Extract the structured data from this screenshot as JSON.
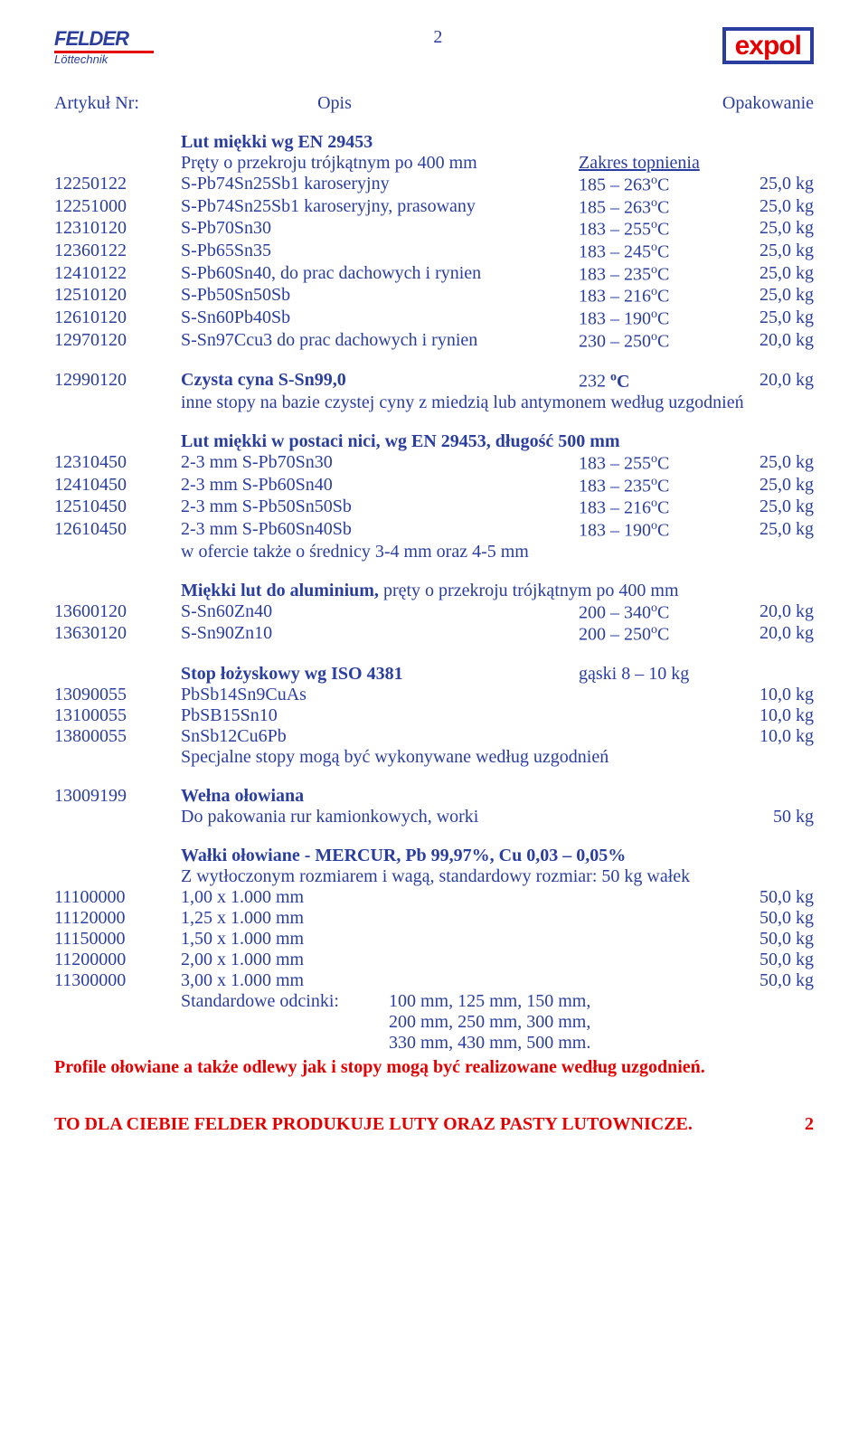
{
  "header": {
    "felder_name": "FELDER",
    "felder_sub": "Löttechnik",
    "page_num": "2",
    "expol": "expol"
  },
  "cols": {
    "c1": "Artykuł Nr:",
    "c2": "Opis",
    "c3": "Opakowanie"
  },
  "s1": {
    "title": "Lut miękki wg EN 29453",
    "sub_left": "Pręty o przekroju trójkątnym po 400 mm",
    "sub_right": "Zakres topnienia",
    "rows": [
      {
        "a": "12250122",
        "d": "S-Pb74Sn25Sb1 karoseryjny",
        "t": "185 – 263",
        "p": "25,0 kg"
      },
      {
        "a": "12251000",
        "d": "S-Pb74Sn25Sb1 karoseryjny, prasowany",
        "t": "185 – 263",
        "p": "25,0 kg"
      },
      {
        "a": "12310120",
        "d": "S-Pb70Sn30",
        "t": "183 – 255",
        "p": "25,0 kg"
      },
      {
        "a": "12360122",
        "d": "S-Pb65Sn35",
        "t": "183 – 245",
        "p": "25,0 kg"
      },
      {
        "a": "12410122",
        "d": "S-Pb60Sn40, do prac dachowych i rynien",
        "t": "183 – 235",
        "p": "25,0 kg"
      },
      {
        "a": "12510120",
        "d": "S-Pb50Sn50Sb",
        "t": "183 – 216",
        "p": "25,0 kg"
      },
      {
        "a": "12610120",
        "d": "S-Sn60Pb40Sb",
        "t": "183 – 190",
        "p": "25,0 kg"
      },
      {
        "a": "12970120",
        "d": "S-Sn97Ccu3 do prac dachowych i rynien",
        "t": "230 – 250",
        "p": "20,0 kg"
      }
    ]
  },
  "s2": {
    "row": {
      "a": "12990120",
      "d": "Czysta cyna S-Sn99,0",
      "t": "232 ",
      "p": "20,0 kg"
    },
    "note": "inne stopy na bazie czystej cyny z miedzią lub antymonem według uzgodnień"
  },
  "s3": {
    "title": "Lut miękki w postaci nici, wg EN 29453, długość 500 mm",
    "rows": [
      {
        "a": "12310450",
        "d": "2-3 mm S-Pb70Sn30",
        "t": "183 – 255",
        "p": "25,0 kg"
      },
      {
        "a": "12410450",
        "d": "2-3 mm S-Pb60Sn40",
        "t": "183 – 235",
        "p": "25,0 kg"
      },
      {
        "a": "12510450",
        "d": "2-3 mm S-Pb50Sn50Sb",
        "t": "183 – 216",
        "p": "25,0 kg"
      },
      {
        "a": "12610450",
        "d": "2-3 mm S-Pb60Sn40Sb",
        "t": "183 – 190",
        "p": "25,0 kg"
      }
    ],
    "note": "w ofercie także o średnicy 3-4 mm oraz 4-5 mm"
  },
  "s4": {
    "title": "Miękki lut do aluminium, ",
    "title2": "pręty o przekroju trójkątnym po 400 mm",
    "rows": [
      {
        "a": "13600120",
        "d": "S-Sn60Zn40",
        "t": "200 – 340",
        "p": "20,0 kg"
      },
      {
        "a": "13630120",
        "d": "S-Sn90Zn10",
        "t": "200 – 250",
        "p": "20,0 kg"
      }
    ]
  },
  "s5": {
    "title": "Stop łożyskowy wg ISO 4381",
    "title_right": "gąski 8 – 10 kg",
    "rows": [
      {
        "a": "13090055",
        "d": "PbSb14Sn9CuAs",
        "p": "10,0 kg"
      },
      {
        "a": "13100055",
        "d": "PbSB15Sn10",
        "p": "10,0 kg"
      },
      {
        "a": "13800055",
        "d": "SnSb12Cu6Pb",
        "p": "10,0 kg"
      }
    ],
    "note": "Specjalne stopy mogą być wykonywane według uzgodnień"
  },
  "s6": {
    "a": "13009199",
    "title": "Wełna ołowiana",
    "desc": "Do pakowania rur kamionkowych, worki",
    "pkg": "50 kg"
  },
  "s7": {
    "title": "Wałki ołowiane - MERCUR, Pb 99,97%, Cu 0,03 – 0,05%",
    "sub": "Z wytłoczonym rozmiarem i wagą, standardowy rozmiar: 50 kg wałek",
    "rows": [
      {
        "a": "11100000",
        "d": "1,00 x 1.000 mm",
        "p": "50,0 kg"
      },
      {
        "a": "11120000",
        "d": "1,25 x 1.000 mm",
        "p": "50,0 kg"
      },
      {
        "a": "11150000",
        "d": "1,50 x 1.000 mm",
        "p": "50,0 kg"
      },
      {
        "a": "11200000",
        "d": "2,00 x 1.000 mm",
        "p": "50,0 kg"
      },
      {
        "a": "11300000",
        "d": "3,00 x 1.000 mm",
        "p": "50,0 kg"
      }
    ],
    "tail_label": "Standardowe odcinki:",
    "tail1": "100 mm, 125 mm, 150 mm,",
    "tail2": "200 mm, 250 mm, 300 mm,",
    "tail3": "330 mm, 430 mm, 500 mm.",
    "red": "Profile ołowiane a także odlewy jak i stopy mogą być realizowane według uzgodnień."
  },
  "footer": {
    "text": "TO DLA CIEBIE FELDER PRODUKUJE LUTY ORAZ PASTY LUTOWNICZE.",
    "num": "2"
  }
}
